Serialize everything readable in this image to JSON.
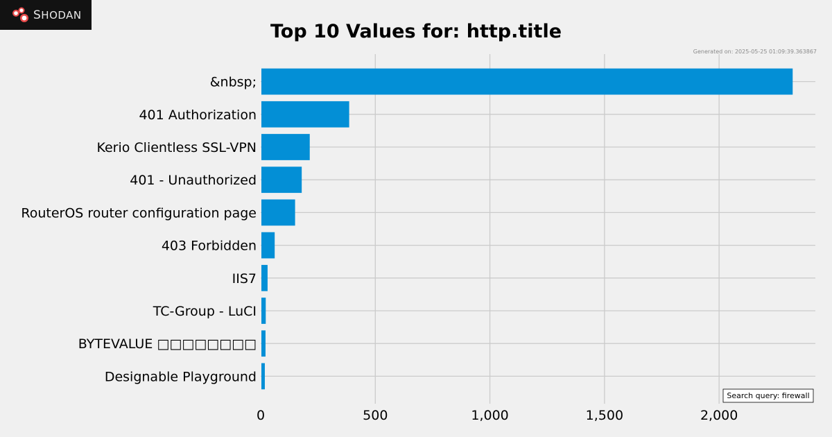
{
  "brand": {
    "name": "Shodan",
    "logo_initial": "S",
    "logo_rest": "HODAN",
    "logo_color": "#e84a4a"
  },
  "generated_on": "Generated on: 2025-05-25 01:09:39.363867",
  "search_query": "Search query: firewall",
  "chart_data": {
    "type": "bar",
    "orientation": "horizontal",
    "title": "Top 10 Values for: http.title",
    "xlabel": "",
    "ylabel": "",
    "categories": [
      "&nbsp;",
      "401 Authorization",
      "Kerio Clientless SSL-VPN",
      "401 - Unauthorized",
      "RouterOS router configuration page",
      "403 Forbidden",
      "IIS7",
      "TC-Group - LuCI",
      "BYTEVALUE □□□□□□□□",
      "Designable Playground"
    ],
    "values": [
      2318,
      383,
      211,
      176,
      147,
      58,
      27,
      19,
      18,
      15
    ],
    "xlim": [
      0,
      2420
    ],
    "xticks": [
      0,
      500,
      1000,
      1500,
      2000
    ],
    "xtick_labels": [
      "0",
      "500",
      "1,000",
      "1,500",
      "2,000"
    ],
    "bar_color": "#038fd6",
    "grid": true,
    "background": "#f0f0f0"
  }
}
